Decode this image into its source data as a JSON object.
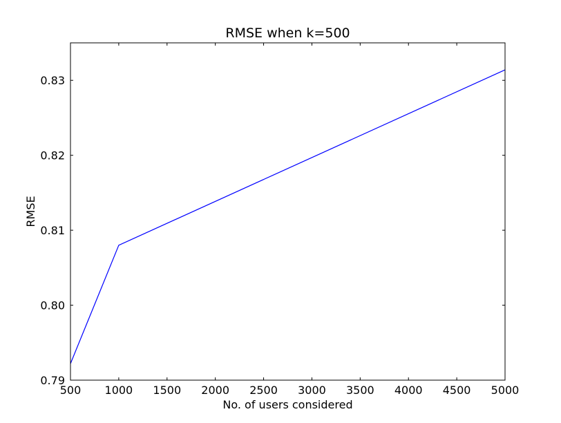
{
  "chart_data": {
    "type": "line",
    "title": "RMSE when k=500",
    "xlabel": "No. of users considered",
    "ylabel": "RMSE",
    "xlim": [
      500,
      5000
    ],
    "ylim": [
      0.79,
      0.835
    ],
    "x_ticks": [
      500,
      1000,
      1500,
      2000,
      2500,
      3000,
      3500,
      4000,
      4500,
      5000
    ],
    "x_tick_labels": [
      "500",
      "1000",
      "1500",
      "2000",
      "2500",
      "3000",
      "3500",
      "4000",
      "4500",
      "5000"
    ],
    "y_ticks": [
      0.79,
      0.8,
      0.81,
      0.82,
      0.83
    ],
    "y_tick_labels": [
      "0.79",
      "0.80",
      "0.81",
      "0.82",
      "0.83"
    ],
    "grid": false,
    "series": [
      {
        "color": "#0000ff",
        "x": [
          500,
          1000,
          5000
        ],
        "y": [
          0.7922,
          0.808,
          0.8314
        ]
      }
    ]
  }
}
